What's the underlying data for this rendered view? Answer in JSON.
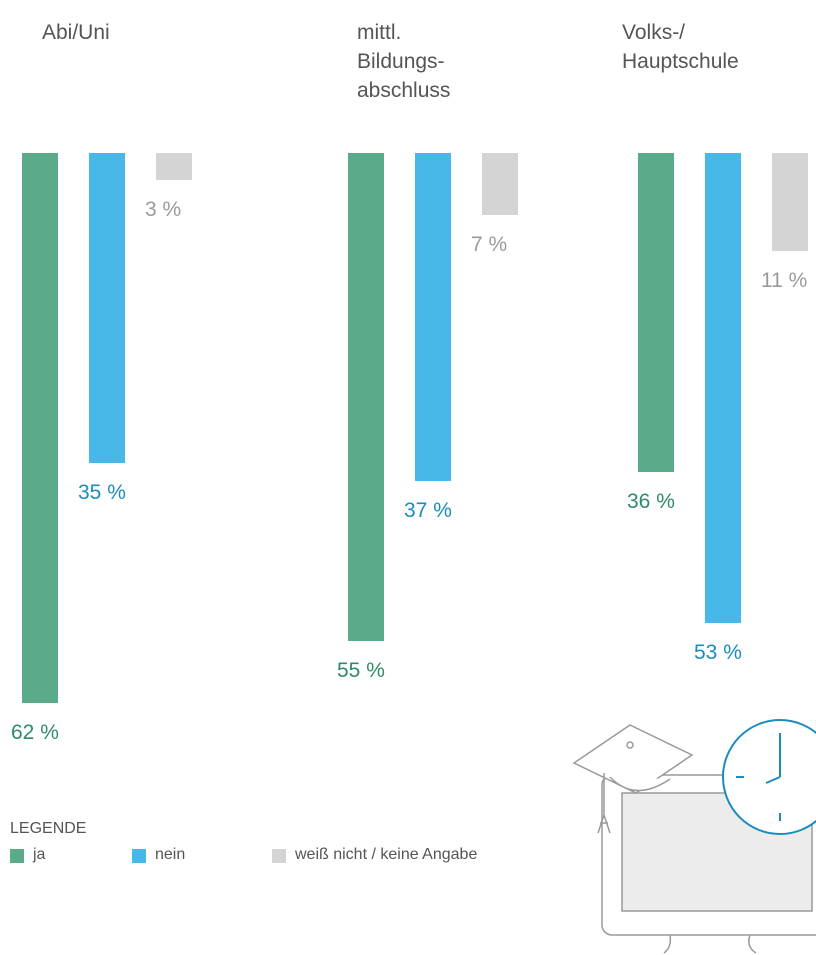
{
  "chart_data": {
    "type": "bar",
    "orientation": "down",
    "categories": [
      "Abi/Uni",
      "mittl.\nBildungs-\nabschluss",
      "Volks-/\nHauptschule"
    ],
    "series": [
      {
        "name": "ja",
        "color": "#5bab8a",
        "label_color": "#2f8a67",
        "values": [
          62,
          55,
          36
        ],
        "value_labels": [
          "62 %",
          "55 %",
          "36 %"
        ]
      },
      {
        "name": "nein",
        "color": "#47b8e8",
        "label_color": "#1a8cbd",
        "values": [
          35,
          37,
          53
        ],
        "value_labels": [
          "35 %",
          "37 %",
          "53 %"
        ]
      },
      {
        "name": "weiß nicht / keine Angabe",
        "color": "#d4d4d4",
        "label_color": "#9a9a9a",
        "values": [
          3,
          7,
          11
        ],
        "value_labels": [
          "3 %",
          "7 %",
          "11 %"
        ]
      }
    ],
    "legend_title": "LEGENDE"
  }
}
